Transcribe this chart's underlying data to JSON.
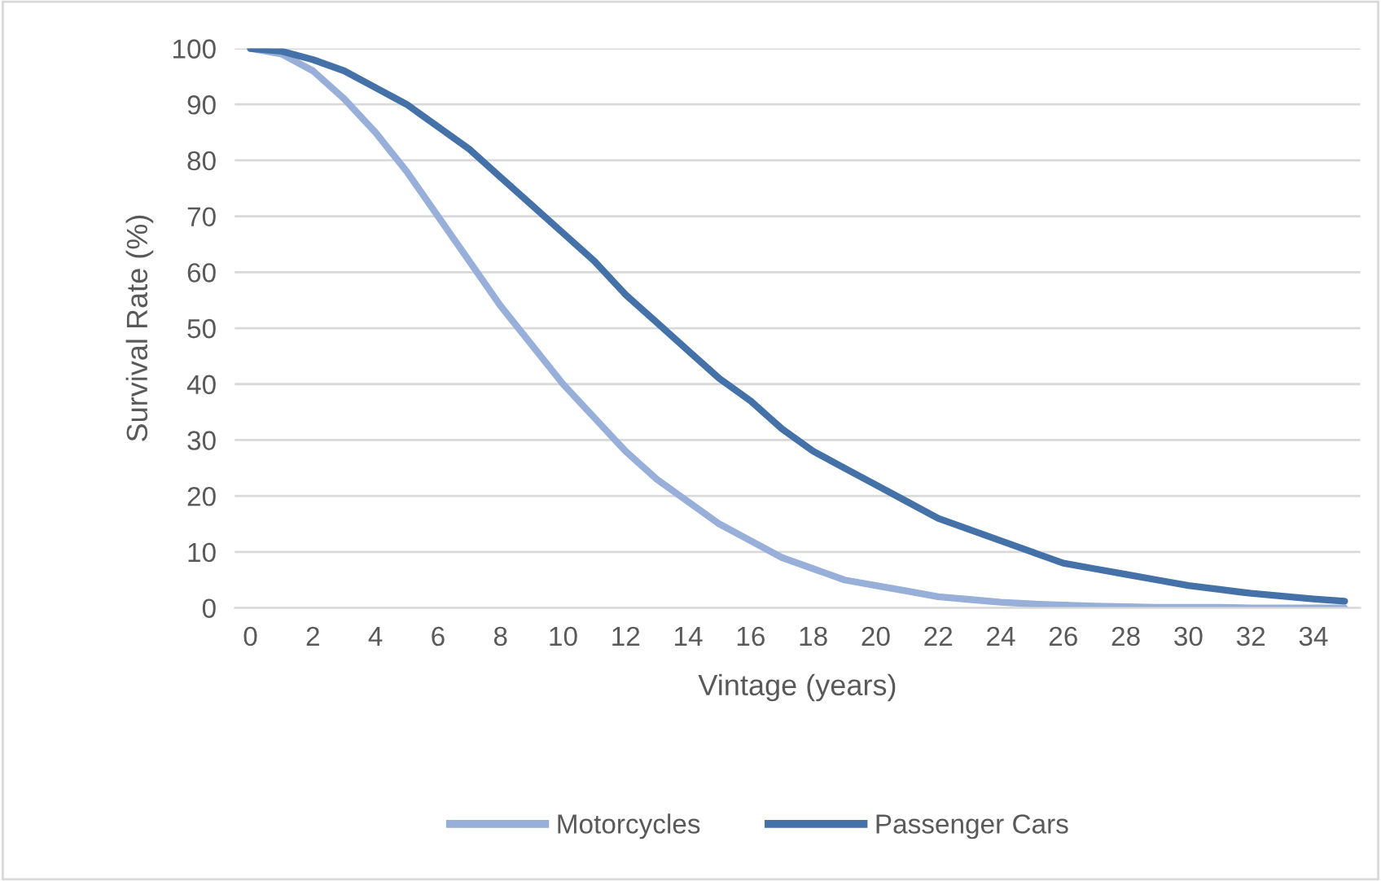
{
  "chart_data": {
    "type": "line",
    "xlabel": "Vintage (years)",
    "ylabel": "Survival Rate (%)",
    "categories": [
      "0",
      null,
      "2",
      null,
      "4",
      null,
      "6",
      null,
      "8",
      null,
      "10",
      null,
      "12",
      null,
      "14",
      null,
      "16",
      null,
      "18",
      null,
      "20",
      null,
      "22",
      null,
      "24",
      null,
      "26",
      null,
      "28",
      null,
      "30",
      null,
      "32",
      null,
      "34",
      null
    ],
    "series": [
      {
        "name": "Motorcycles",
        "color": "#98afd9",
        "values": [
          100,
          99,
          96,
          91,
          85,
          78,
          70,
          62,
          54,
          47,
          40,
          34,
          28,
          23,
          19,
          15,
          12,
          9,
          7,
          5,
          4,
          3,
          2,
          1.5,
          1,
          0.7,
          0.5,
          0.3,
          0.2,
          0.1,
          0.1,
          0.1,
          0,
          0,
          0,
          0
        ]
      },
      {
        "name": "Passenger Cars",
        "color": "#4472a8",
        "values": [
          100,
          99.5,
          98,
          96,
          93,
          90,
          86,
          82,
          77,
          72,
          67,
          62,
          56,
          51,
          46,
          41,
          37,
          32,
          28,
          25,
          22,
          19,
          16,
          14,
          12,
          10,
          8,
          7,
          6,
          5,
          4,
          3.3,
          2.6,
          2.1,
          1.6,
          1.2
        ]
      }
    ],
    "ylim": [
      0,
      100
    ],
    "yticks": [
      0,
      10,
      20,
      30,
      40,
      50,
      60,
      70,
      80,
      90,
      100
    ],
    "grid": "y",
    "legend": "bottom",
    "marker": "none",
    "line_style": "solid"
  }
}
